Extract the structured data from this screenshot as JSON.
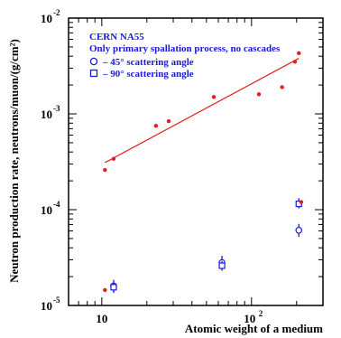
{
  "chart_data": {
    "type": "scatter",
    "title": "",
    "xlabel": "Atomic weight of a medium",
    "ylabel": "Neutron production rate, neutrons/muon/(g/cm²)",
    "xscale": "log",
    "yscale": "log",
    "xlim": [
      6,
      300
    ],
    "ylim": [
      1e-05,
      0.01
    ],
    "grid": false,
    "legend_position": "top-left",
    "annotation_lines": [
      "CERN NA55",
      "Only primary spallation process, no cascades"
    ],
    "x_tick_labels": [
      "10",
      "10",
      "2"
    ],
    "y_tick_labels": [
      {
        "base": "10",
        "exp": "-5"
      },
      {
        "base": "10",
        "exp": "-4"
      },
      {
        "base": "10",
        "exp": "-3"
      },
      {
        "base": "10",
        "exp": "-2"
      }
    ],
    "series": [
      {
        "marker": "dot",
        "color": "#e02020",
        "points": [
          {
            "x": 10.5,
            "y": 0.00026
          },
          {
            "x": 12.0,
            "y": 0.00034
          },
          {
            "x": 23.0,
            "y": 0.00075
          },
          {
            "x": 28.0,
            "y": 0.00084
          },
          {
            "x": 56.0,
            "y": 0.0015
          },
          {
            "x": 112.0,
            "y": 0.0016
          },
          {
            "x": 160.0,
            "y": 0.0019
          },
          {
            "x": 195.0,
            "y": 0.0035
          },
          {
            "x": 207.0,
            "y": 0.0043
          }
        ]
      },
      {
        "name": "45° scattering angle",
        "marker": "circle",
        "color": "#1a1adb",
        "points": [
          {
            "x": 12.0,
            "y": 1.6e-05,
            "ylow": 1.35e-05,
            "yhigh": 1.85e-05
          },
          {
            "x": 63.5,
            "y": 2.8e-05,
            "ylow": 2.4e-05,
            "yhigh": 3.3e-05
          },
          {
            "x": 207.0,
            "y": 6.1e-05,
            "ylow": 5.2e-05,
            "yhigh": 7.1e-05
          }
        ]
      },
      {
        "name": "90° scattering angle",
        "marker": "square",
        "color": "#1a1adb",
        "points": [
          {
            "x": 12.0,
            "y": 1.55e-05,
            "ylow": 1.4e-05,
            "yhigh": 1.7e-05
          },
          {
            "x": 63.5,
            "y": 2.6e-05,
            "ylow": 2.3e-05,
            "yhigh": 2.9e-05
          },
          {
            "x": 207.0,
            "y": 0.000115,
            "ylow": 0.000103,
            "yhigh": 0.000132
          }
        ]
      },
      {
        "marker": "dot",
        "color": "#e02020",
        "points": [
          {
            "x": 10.5,
            "y": 1.45e-05
          },
          {
            "x": 215.0,
            "y": 0.00012
          }
        ]
      }
    ],
    "fit_line": {
      "color": "#e02020",
      "from": {
        "x": 10.5,
        "y": 0.00031
      },
      "to": {
        "x": 207.0,
        "y": 0.0038
      }
    },
    "legend": [
      {
        "marker": "circle",
        "label": "– 45° scattering angle"
      },
      {
        "marker": "square",
        "label": "– 90° scattering angle"
      }
    ]
  }
}
